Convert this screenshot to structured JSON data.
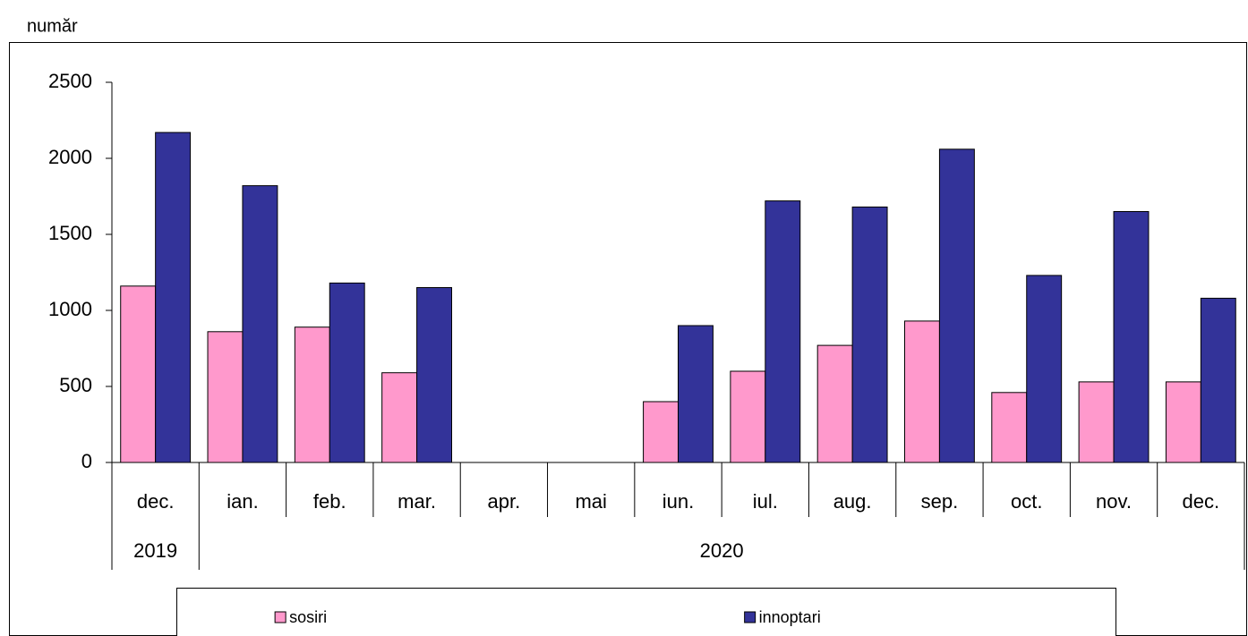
{
  "chart_data": {
    "type": "bar",
    "y_unit_label": "număr",
    "categories": [
      "dec.",
      "ian.",
      "feb.",
      "mar.",
      "apr.",
      "mai",
      "iun.",
      "iul.",
      "aug.",
      "sep.",
      "oct.",
      "nov.",
      "dec."
    ],
    "category_groups": [
      {
        "label": "2019",
        "count": 1
      },
      {
        "label": "2020",
        "count": 12
      }
    ],
    "series": [
      {
        "name": "sosiri",
        "color": "#ff99cc",
        "values": [
          1160,
          860,
          890,
          590,
          0,
          0,
          400,
          600,
          770,
          930,
          460,
          530,
          530
        ]
      },
      {
        "name": "innoptari",
        "color": "#333399",
        "values": [
          2170,
          1820,
          1180,
          1150,
          0,
          0,
          900,
          1720,
          1680,
          2060,
          1230,
          1650,
          1080
        ]
      }
    ],
    "ylim": [
      0,
      2500
    ],
    "yticks": [
      0,
      500,
      1000,
      1500,
      2000,
      2500
    ],
    "grid": false,
    "legend": "bottom"
  }
}
